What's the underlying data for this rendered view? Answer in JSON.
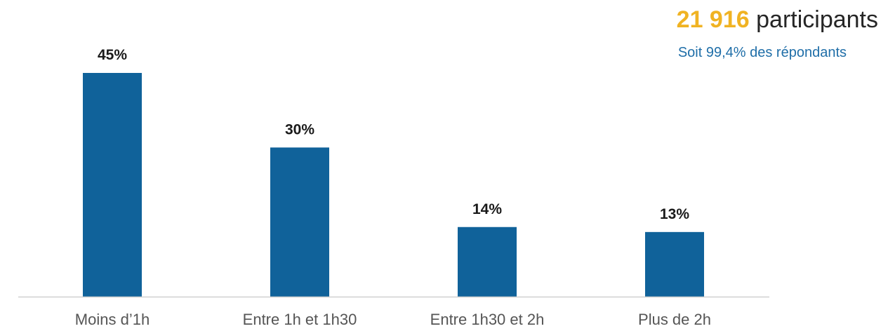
{
  "header": {
    "count": "21 916",
    "count_label": "participants",
    "subtitle": "Soit 99,4% des répondants"
  },
  "colors": {
    "bar": "#10629a",
    "count": "#f0b323",
    "subtitle": "#1f6ea8",
    "axis": "#d0d0d0"
  },
  "chart_data": {
    "type": "bar",
    "categories": [
      "Moins d’1h",
      "Entre 1h et 1h30",
      "Entre 1h30 et 2h",
      "Plus de 2h"
    ],
    "values": [
      45,
      30,
      14,
      13
    ],
    "value_labels": [
      "45%",
      "30%",
      "14%",
      "13%"
    ],
    "unit": "%",
    "ylim": [
      0,
      45
    ],
    "grid": false,
    "legend": "none"
  }
}
